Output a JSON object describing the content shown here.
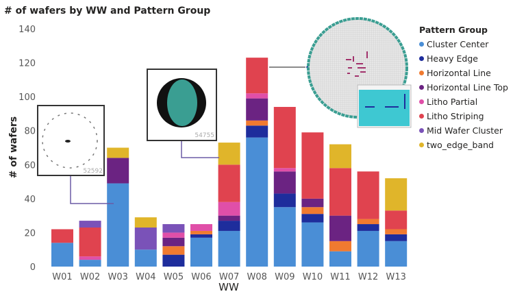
{
  "chart_data": {
    "type": "bar",
    "stacked": true,
    "title": "# of wafers by WW and Pattern Group",
    "xlabel": "WW",
    "ylabel": "# of wafers",
    "ylim": [
      0,
      140
    ],
    "yticks": [
      0,
      20,
      40,
      60,
      80,
      100,
      120,
      140
    ],
    "grid": false,
    "legend_title": "Pattern Group",
    "legend_position": "right",
    "categories": [
      "W01",
      "W02",
      "W03",
      "W04",
      "W05",
      "W06",
      "W07",
      "W08",
      "W09",
      "W10",
      "W11",
      "W12",
      "W13"
    ],
    "series": [
      {
        "name": "Cluster Center",
        "color": "#4a8ed6",
        "values": [
          14,
          4,
          49,
          10,
          0,
          17,
          21,
          76,
          35,
          26,
          9,
          21,
          15
        ]
      },
      {
        "name": "Heavy Edge",
        "color": "#1e2d9c",
        "values": [
          0,
          0,
          0,
          0,
          7,
          2,
          6,
          7,
          8,
          5,
          0,
          4,
          4
        ]
      },
      {
        "name": "Horizontal Line",
        "color": "#f07a30",
        "values": [
          0,
          0,
          0,
          0,
          5,
          2,
          0,
          3,
          0,
          4,
          6,
          3,
          3
        ]
      },
      {
        "name": "Horizontal Line Top",
        "color": "#6b2382",
        "values": [
          0,
          0,
          15,
          0,
          5,
          0,
          3,
          13,
          13,
          5,
          15,
          0,
          0
        ]
      },
      {
        "name": "Litho Partial",
        "color": "#e04fa8",
        "values": [
          0,
          2,
          0,
          0,
          3,
          4,
          8,
          3,
          2,
          0,
          0,
          0,
          0
        ]
      },
      {
        "name": "Litho Striping",
        "color": "#e0434f",
        "values": [
          8,
          17,
          0,
          0,
          0,
          0,
          22,
          21,
          36,
          39,
          28,
          28,
          11
        ]
      },
      {
        "name": "Mid Wafer Cluster",
        "color": "#7a52b8",
        "values": [
          0,
          4,
          0,
          13,
          5,
          0,
          0,
          0,
          0,
          0,
          0,
          0,
          0
        ]
      },
      {
        "name": "two_edge_band",
        "color": "#e0b52a",
        "values": [
          0,
          0,
          6,
          6,
          0,
          0,
          13,
          0,
          0,
          0,
          14,
          0,
          19
        ]
      }
    ]
  },
  "insets": [
    {
      "id_label": "52592"
    },
    {
      "id_label": "54755"
    }
  ]
}
